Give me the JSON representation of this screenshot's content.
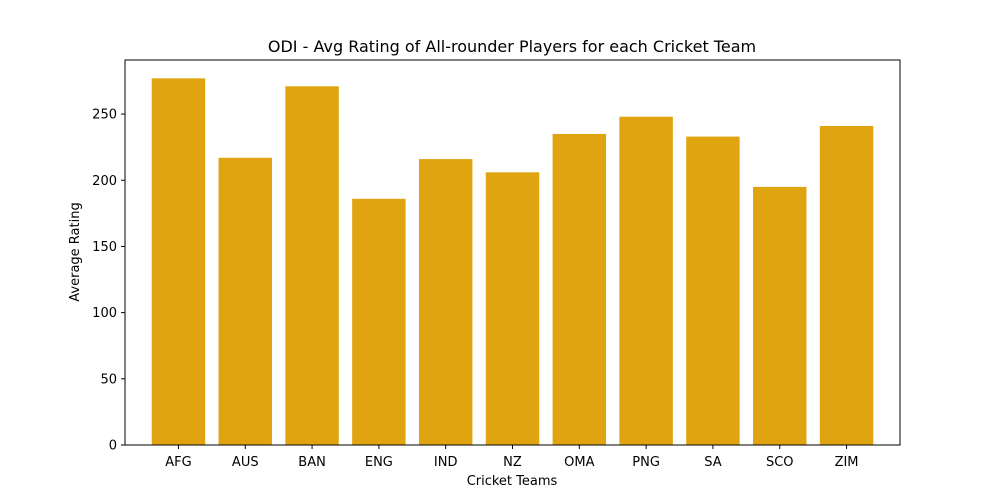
{
  "chart_data": {
    "type": "bar",
    "title": "ODI - Avg Rating of All-rounder Players for each Cricket Team",
    "xlabel": "Cricket Teams",
    "ylabel": "Average Rating",
    "categories": [
      "AFG",
      "AUS",
      "BAN",
      "ENG",
      "IND",
      "NZ",
      "OMA",
      "PNG",
      "SA",
      "SCO",
      "ZIM"
    ],
    "values": [
      277,
      217,
      271,
      186,
      216,
      206,
      235,
      248,
      233,
      195,
      241
    ],
    "ylim": [
      0,
      290.85
    ],
    "yticks": [
      0,
      50,
      100,
      150,
      200,
      250
    ],
    "bar_color": "#e0a411",
    "grid": false,
    "legend": "none"
  }
}
